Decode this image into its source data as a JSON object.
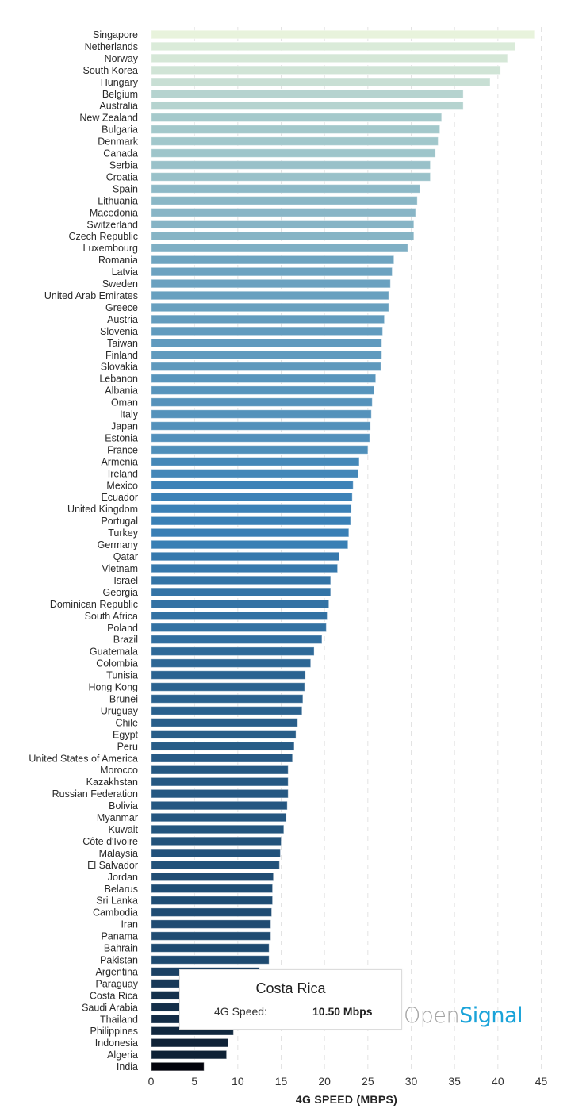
{
  "chart_data": {
    "type": "bar",
    "orientation": "horizontal",
    "title": "",
    "xlabel": "4G SPEED (MBPS)",
    "ylabel": "",
    "xlim": [
      0,
      45
    ],
    "xticks": [
      0,
      5,
      10,
      15,
      20,
      25,
      30,
      35,
      40,
      45
    ],
    "grid": "vertical-dashed",
    "color_scale": [
      "#e8f3dc",
      "#a3c8cb",
      "#3a80b6",
      "#1e4a70",
      "#03040c"
    ],
    "categories": [
      "Singapore",
      "Netherlands",
      "Norway",
      "South Korea",
      "Hungary",
      "Belgium",
      "Australia",
      "New Zealand",
      "Bulgaria",
      "Denmark",
      "Canada",
      "Serbia",
      "Croatia",
      "Spain",
      "Lithuania",
      "Macedonia",
      "Switzerland",
      "Czech Republic",
      "Luxembourg",
      "Romania",
      "Latvia",
      "Sweden",
      "United Arab Emirates",
      "Greece",
      "Austria",
      "Slovenia",
      "Taiwan",
      "Finland",
      "Slovakia",
      "Lebanon",
      "Albania",
      "Oman",
      "Italy",
      "Japan",
      "Estonia",
      "France",
      "Armenia",
      "Ireland",
      "Mexico",
      "Ecuador",
      "United Kingdom",
      "Portugal",
      "Turkey",
      "Germany",
      "Qatar",
      "Vietnam",
      "Israel",
      "Georgia",
      "Dominican Republic",
      "South Africa",
      "Poland",
      "Brazil",
      "Guatemala",
      "Colombia",
      "Tunisia",
      "Hong Kong",
      "Brunei",
      "Uruguay",
      "Chile",
      "Egypt",
      "Peru",
      "United States of America",
      "Morocco",
      "Kazakhstan",
      "Russian Federation",
      "Bolivia",
      "Myanmar",
      "Kuwait",
      "Côte d'Ivoire",
      "Malaysia",
      "El Salvador",
      "Jordan",
      "Belarus",
      "Sri Lanka",
      "Cambodia",
      "Iran",
      "Panama",
      "Bahrain",
      "Pakistan",
      "Argentina",
      "Paraguay",
      "Costa Rica",
      "Saudi Arabia",
      "Thailand",
      "Philippines",
      "Indonesia",
      "Algeria",
      "India"
    ],
    "values": [
      44.2,
      42.0,
      41.1,
      40.3,
      39.1,
      36.0,
      36.0,
      33.5,
      33.3,
      33.1,
      32.8,
      32.2,
      32.2,
      31.0,
      30.7,
      30.5,
      30.3,
      30.3,
      29.6,
      28.0,
      27.8,
      27.6,
      27.4,
      27.4,
      26.9,
      26.7,
      26.6,
      26.6,
      26.5,
      25.9,
      25.7,
      25.5,
      25.4,
      25.3,
      25.2,
      25.0,
      24.0,
      23.9,
      23.3,
      23.2,
      23.1,
      23.0,
      22.8,
      22.7,
      21.7,
      21.5,
      20.7,
      20.7,
      20.5,
      20.3,
      20.2,
      19.7,
      18.8,
      18.4,
      17.8,
      17.7,
      17.5,
      17.4,
      16.9,
      16.7,
      16.5,
      16.3,
      15.8,
      15.8,
      15.8,
      15.7,
      15.6,
      15.3,
      15.0,
      14.9,
      14.8,
      14.1,
      14.0,
      14.0,
      13.9,
      13.8,
      13.8,
      13.6,
      13.6,
      12.5,
      11.5,
      10.5,
      10.3,
      10.0,
      9.5,
      8.9,
      8.7,
      6.1
    ],
    "legend": "none"
  },
  "tooltip": {
    "title": "Costa Rica",
    "label": "4G Speed:",
    "value": "10.50 Mbps"
  },
  "logo": {
    "part1": "Open",
    "part2": "Signal"
  }
}
